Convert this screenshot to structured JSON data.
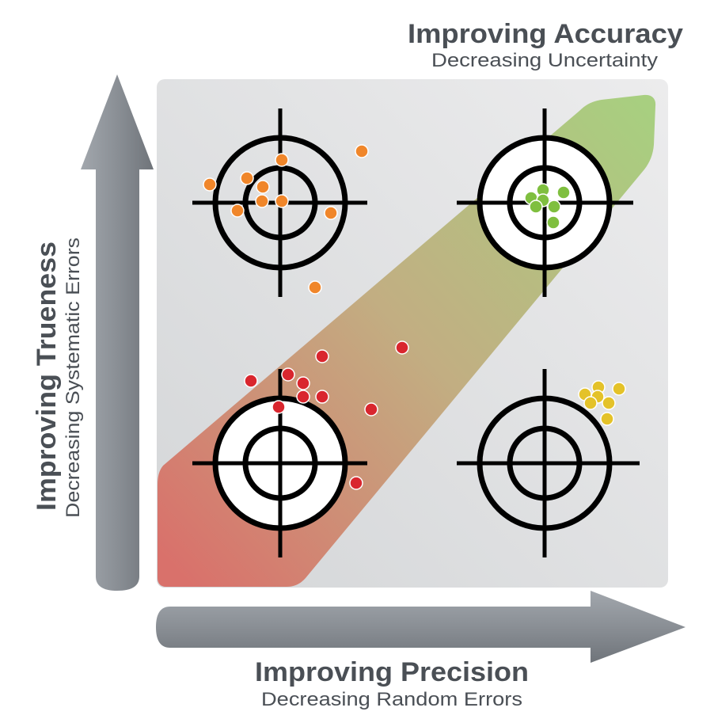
{
  "labels": {
    "accuracy": {
      "title": "Improving Accuracy",
      "subtitle": "Decreasing Uncertainty"
    },
    "trueness": {
      "title": "Improving Trueness",
      "subtitle": "Decreasing Systematic Errors"
    },
    "precision": {
      "title": "Improving Precision",
      "subtitle": "Decreasing Random Errors"
    }
  },
  "colors": {
    "panel": "#e3e4e5",
    "band_start": "#d9716b",
    "band_end": "#a8cf80",
    "arrow": "#8d9298",
    "text": "#4a4f55",
    "orange": "#f0862a",
    "green": "#7fbf3f",
    "red": "#d9262e",
    "yellow": "#e4c229"
  },
  "targets": [
    {
      "position": "top-left",
      "trueness": "high",
      "precision": "low",
      "icon": "target-crosshair-icon",
      "shot_color": "orange",
      "shot_count": 11
    },
    {
      "position": "top-right",
      "trueness": "high",
      "precision": "high",
      "icon": "target-crosshair-icon",
      "shot_color": "green",
      "shot_count": 8
    },
    {
      "position": "bottom-left",
      "trueness": "low",
      "precision": "low",
      "icon": "target-crosshair-icon",
      "shot_color": "red",
      "shot_count": 11
    },
    {
      "position": "bottom-right",
      "trueness": "low",
      "precision": "high",
      "icon": "target-crosshair-icon",
      "shot_color": "yellow",
      "shot_count": 8
    }
  ]
}
